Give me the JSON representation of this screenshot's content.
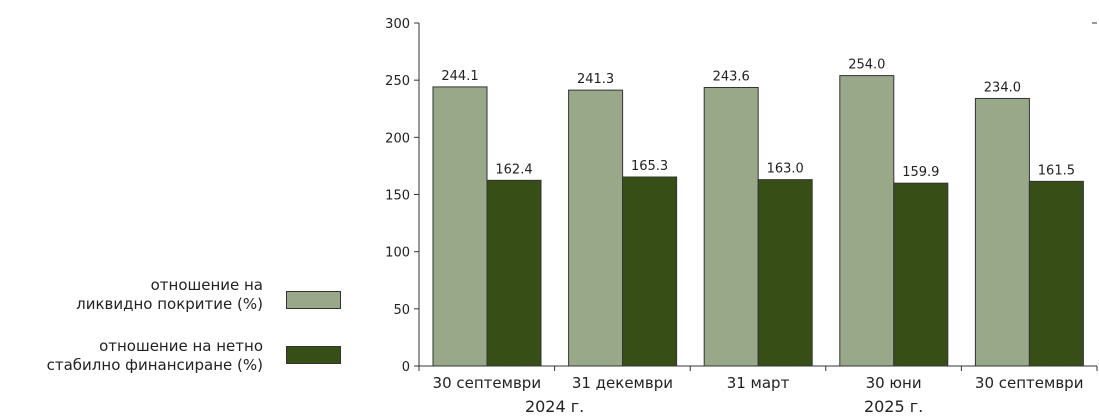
{
  "chart_data": {
    "type": "bar",
    "categories": [
      "30 септември",
      "31 декември",
      "31 март",
      "30 юни",
      "30 септември"
    ],
    "year_groups": [
      {
        "label": "2024 г.",
        "from": 0,
        "to": 1
      },
      {
        "label": "2025 г.",
        "from": 2,
        "to": 4
      }
    ],
    "series": [
      {
        "name": "отношение на ликвидно покритие (%)",
        "color": "#9aa88a",
        "values": [
          244.1,
          241.3,
          243.6,
          254.0,
          234.0
        ]
      },
      {
        "name": "отношение на нетно стабилно финансиране (%)",
        "color": "#374f17",
        "values": [
          162.4,
          165.3,
          163.0,
          159.9,
          161.5
        ]
      }
    ],
    "ylim": [
      0,
      300
    ],
    "yticks": [
      0,
      50,
      100,
      150,
      200,
      250,
      300
    ],
    "grid": false,
    "legend_position": "left"
  },
  "legend": {
    "items": [
      {
        "line1": "отношение на",
        "line2": "ликвидно покритие (%)"
      },
      {
        "line1": "отношение на нетно",
        "line2": "стабилно финансиране (%)"
      }
    ]
  }
}
